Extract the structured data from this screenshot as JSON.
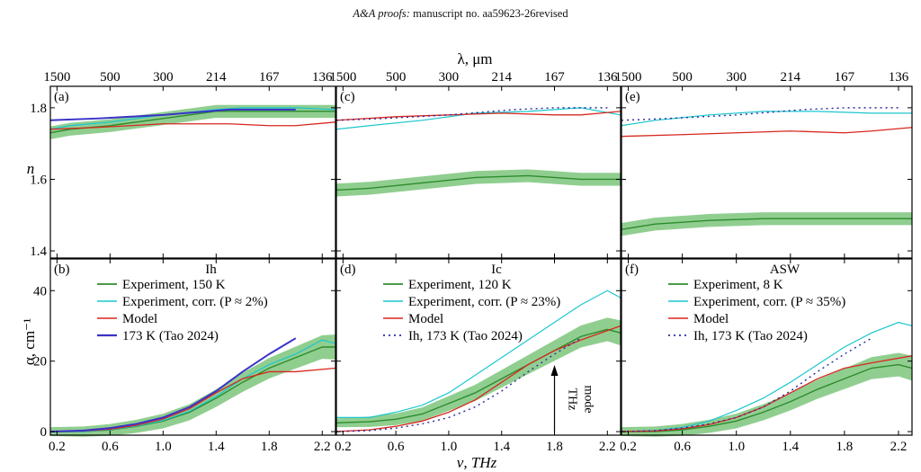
{
  "header": {
    "journal": "A&A proofs:",
    "manuscript": "manuscript no. aa59623-26revised"
  },
  "figure": {
    "top_axis_label": "λ, μm",
    "top_ticks": [
      {
        "label": "1500",
        "nu": 0.2
      },
      {
        "label": "500",
        "nu": 0.6
      },
      {
        "label": "300",
        "nu": 1.0
      },
      {
        "label": "214",
        "nu": 1.4
      },
      {
        "label": "167",
        "nu": 1.8
      },
      {
        "label": "136",
        "nu": 2.2
      }
    ],
    "x_axis_label": "ν, THz",
    "x_ticks": [
      "0.2",
      "0.6",
      "1.0",
      "1.4",
      "1.8",
      "2.2"
    ],
    "n_axis_label": "n",
    "n_ticks": [
      "1.4",
      "1.6",
      "1.8"
    ],
    "alpha_axis_label": "α, cm⁻¹",
    "alpha_ticks": [
      "0",
      "20",
      "40"
    ],
    "annotation": "THz mode"
  },
  "colors": {
    "experiment": "#2e8b2e",
    "band": "#7cc67c",
    "corr": "#1cc6cf",
    "model": "#d8271f",
    "tao": "#3a32c8",
    "tao_dotted": "#2a2aa0"
  },
  "chart_data": [
    {
      "type": "line",
      "panel": "(a)",
      "xlim": [
        0.15,
        2.3
      ],
      "ylim": [
        1.38,
        1.86
      ],
      "series": [
        {
          "name": "Experiment",
          "x": [
            0.15,
            0.3,
            0.6,
            1.0,
            1.4,
            1.6,
            2.0,
            2.3
          ],
          "y": [
            1.73,
            1.74,
            1.75,
            1.77,
            1.79,
            1.79,
            1.79,
            1.79
          ]
        },
        {
          "name": "Experiment, corr.",
          "x": [
            0.15,
            0.3,
            0.6,
            1.0,
            1.4,
            1.6,
            2.0,
            2.3
          ],
          "y": [
            1.74,
            1.75,
            1.76,
            1.78,
            1.795,
            1.8,
            1.8,
            1.795
          ]
        },
        {
          "name": "Model",
          "x": [
            0.15,
            0.5,
            1.0,
            1.5,
            1.8,
            2.0,
            2.3
          ],
          "y": [
            1.74,
            1.745,
            1.755,
            1.755,
            1.75,
            1.75,
            1.76
          ]
        },
        {
          "name": "173 K (Tao 2024)",
          "x": [
            0.15,
            0.5,
            1.0,
            1.5,
            1.8,
            2.0
          ],
          "y": [
            1.765,
            1.77,
            1.78,
            1.795,
            1.795,
            1.795
          ]
        }
      ]
    },
    {
      "type": "line",
      "panel": "(c)",
      "xlim": [
        0.15,
        2.3
      ],
      "ylim": [
        1.38,
        1.86
      ],
      "series": [
        {
          "name": "Experiment",
          "x": [
            0.15,
            0.4,
            0.8,
            1.2,
            1.6,
            1.8,
            2.0,
            2.3
          ],
          "y": [
            1.57,
            1.575,
            1.59,
            1.605,
            1.61,
            1.605,
            1.6,
            1.6
          ]
        },
        {
          "name": "Experiment, corr.",
          "x": [
            0.15,
            0.4,
            0.8,
            1.2,
            1.6,
            1.8,
            2.0,
            2.3
          ],
          "y": [
            1.74,
            1.75,
            1.765,
            1.785,
            1.79,
            1.795,
            1.8,
            1.78
          ]
        },
        {
          "name": "Model",
          "x": [
            0.15,
            0.6,
            1.0,
            1.4,
            1.8,
            2.0,
            2.3
          ],
          "y": [
            1.765,
            1.775,
            1.78,
            1.785,
            1.78,
            1.78,
            1.79
          ]
        },
        {
          "name": "Ih, 173 K (Tao 2024)",
          "x": [
            0.15,
            0.5,
            1.0,
            1.5,
            1.8,
            2.2
          ],
          "y": [
            1.765,
            1.77,
            1.78,
            1.795,
            1.8,
            1.8
          ]
        }
      ]
    },
    {
      "type": "line",
      "panel": "(e)",
      "xlim": [
        0.15,
        2.3
      ],
      "ylim": [
        1.38,
        1.86
      ],
      "series": [
        {
          "name": "Experiment",
          "x": [
            0.15,
            0.4,
            0.8,
            1.2,
            1.6,
            2.0,
            2.3
          ],
          "y": [
            1.46,
            1.475,
            1.485,
            1.49,
            1.49,
            1.49,
            1.49
          ]
        },
        {
          "name": "Experiment, corr.",
          "x": [
            0.15,
            0.4,
            0.8,
            1.2,
            1.6,
            2.0,
            2.3
          ],
          "y": [
            1.75,
            1.765,
            1.78,
            1.79,
            1.79,
            1.785,
            1.785
          ]
        },
        {
          "name": "Model",
          "x": [
            0.15,
            0.6,
            1.0,
            1.4,
            1.8,
            2.0,
            2.3
          ],
          "y": [
            1.72,
            1.725,
            1.73,
            1.735,
            1.73,
            1.735,
            1.745
          ]
        },
        {
          "name": "Ih, 173 K (Tao 2024)",
          "x": [
            0.15,
            0.5,
            1.0,
            1.5,
            1.8,
            2.2
          ],
          "y": [
            1.765,
            1.77,
            1.78,
            1.795,
            1.8,
            1.8
          ]
        }
      ]
    },
    {
      "type": "line",
      "panel": "(b)",
      "title": "Ih",
      "xlim": [
        0.15,
        2.3
      ],
      "ylim": [
        -1,
        49
      ],
      "series": [
        {
          "name": "Experiment, 150 K",
          "x": [
            0.15,
            0.4,
            0.6,
            0.8,
            1.0,
            1.2,
            1.4,
            1.6,
            1.8,
            2.0,
            2.2,
            2.3
          ],
          "y": [
            0,
            0,
            0.5,
            1.5,
            3,
            5.5,
            9.5,
            14,
            18,
            21,
            24,
            24
          ]
        },
        {
          "name": "Experiment, corr. (P ≈ 2%)",
          "x": [
            0.15,
            0.4,
            0.6,
            0.8,
            1.0,
            1.2,
            1.4,
            1.6,
            1.8,
            2.0,
            2.2,
            2.3
          ],
          "y": [
            0,
            0,
            0.6,
            1.6,
            3.2,
            5.8,
            10,
            15,
            19,
            22,
            26,
            25
          ]
        },
        {
          "name": "Model",
          "x": [
            0.15,
            0.4,
            0.6,
            0.8,
            1.0,
            1.2,
            1.4,
            1.6,
            1.8,
            2.0,
            2.3
          ],
          "y": [
            0,
            0.2,
            0.7,
            1.8,
            3.6,
            6.5,
            11,
            15,
            17,
            17,
            18
          ]
        },
        {
          "name": "173 K (Tao 2024)",
          "x": [
            0.15,
            0.4,
            0.6,
            0.8,
            1.0,
            1.2,
            1.4,
            1.6,
            1.8,
            2.0
          ],
          "y": [
            0,
            0.3,
            1,
            2.2,
            4,
            7,
            11.5,
            17,
            22,
            26.5
          ]
        }
      ]
    },
    {
      "type": "line",
      "panel": "(d)",
      "title": "Ic",
      "xlim": [
        0.15,
        2.3
      ],
      "ylim": [
        -1,
        49
      ],
      "series": [
        {
          "name": "Experiment, 120 K",
          "x": [
            0.15,
            0.4,
            0.6,
            0.8,
            1.0,
            1.2,
            1.4,
            1.6,
            1.8,
            2.0,
            2.2,
            2.3
          ],
          "y": [
            2.5,
            2.8,
            3.5,
            5,
            8,
            11,
            15,
            19,
            23,
            27,
            29,
            28
          ]
        },
        {
          "name": "Experiment, corr. (P ≈ 23%)",
          "x": [
            0.15,
            0.4,
            0.6,
            0.8,
            1.0,
            1.2,
            1.4,
            1.6,
            1.8,
            2.0,
            2.2,
            2.3
          ],
          "y": [
            4,
            4,
            5.5,
            7.5,
            11,
            16,
            21,
            26,
            31,
            36,
            40,
            38
          ]
        },
        {
          "name": "Model",
          "x": [
            0.15,
            0.4,
            0.6,
            0.8,
            1.0,
            1.2,
            1.4,
            1.6,
            1.8,
            2.0,
            2.3
          ],
          "y": [
            0,
            0.5,
            1.5,
            3,
            5.5,
            9,
            14,
            19,
            23,
            26,
            30
          ]
        },
        {
          "name": "Ih, 173 K (Tao 2024)",
          "x": [
            0.15,
            0.4,
            0.6,
            0.8,
            1.0,
            1.2,
            1.4,
            1.6,
            1.8,
            2.0
          ],
          "y": [
            0,
            0.3,
            1,
            2.2,
            4,
            7,
            11.5,
            17,
            22,
            26.5
          ]
        }
      ]
    },
    {
      "type": "line",
      "panel": "(f)",
      "title": "ASW",
      "xlim": [
        0.15,
        2.3
      ],
      "ylim": [
        -1,
        49
      ],
      "series": [
        {
          "name": "Experiment, 8 K",
          "x": [
            0.15,
            0.4,
            0.6,
            0.8,
            1.0,
            1.2,
            1.4,
            1.6,
            1.8,
            2.0,
            2.2,
            2.3
          ],
          "y": [
            0,
            0,
            0.5,
            1.5,
            3,
            5.5,
            8.5,
            12,
            15,
            18,
            19,
            18
          ]
        },
        {
          "name": "Experiment, corr. (P ≈ 35%)",
          "x": [
            0.15,
            0.4,
            0.6,
            0.8,
            1.0,
            1.2,
            1.4,
            1.6,
            1.8,
            2.0,
            2.2,
            2.3
          ],
          "y": [
            0,
            0.3,
            1.2,
            3,
            6,
            9.5,
            14,
            19,
            24,
            28,
            31,
            30
          ]
        },
        {
          "name": "Model",
          "x": [
            0.15,
            0.4,
            0.6,
            0.8,
            1.0,
            1.2,
            1.4,
            1.6,
            1.8,
            2.0,
            2.3
          ],
          "y": [
            0,
            0.2,
            0.8,
            2,
            4,
            7,
            11,
            15,
            18,
            19.5,
            21.5
          ]
        },
        {
          "name": "Ih, 173 K (Tao 2024)",
          "x": [
            0.15,
            0.4,
            0.6,
            0.8,
            1.0,
            1.2,
            1.4,
            1.6,
            1.8,
            2.0
          ],
          "y": [
            0,
            0.3,
            1,
            2.2,
            4,
            7,
            11.5,
            17,
            22,
            26.5
          ]
        }
      ]
    }
  ]
}
